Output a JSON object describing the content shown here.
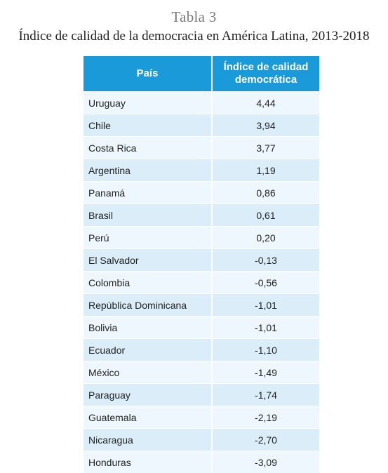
{
  "caption": {
    "label": "Tabla 3",
    "title": "Índice de calidad de la democracia en América Latina, 2013-2018"
  },
  "table": {
    "headers": {
      "pais": "País",
      "indice": "Índice de calidad democrática"
    },
    "rows": [
      {
        "pais": "Uruguay",
        "valor": "4,44"
      },
      {
        "pais": "Chile",
        "valor": "3,94"
      },
      {
        "pais": "Costa Rica",
        "valor": "3,77"
      },
      {
        "pais": "Argentina",
        "valor": "1,19"
      },
      {
        "pais": "Panamá",
        "valor": "0,86"
      },
      {
        "pais": "Brasil",
        "valor": "0,61"
      },
      {
        "pais": "Perú",
        "valor": "0,20"
      },
      {
        "pais": "El Salvador",
        "valor": "-0,13"
      },
      {
        "pais": "Colombia",
        "valor": "-0,56"
      },
      {
        "pais": "República Dominicana",
        "valor": "-1,01"
      },
      {
        "pais": "Bolivia",
        "valor": "-1,01"
      },
      {
        "pais": "Ecuador",
        "valor": "-1,10"
      },
      {
        "pais": "México",
        "valor": "-1,49"
      },
      {
        "pais": "Paraguay",
        "valor": "-1,74"
      },
      {
        "pais": "Guatemala",
        "valor": "-2,19"
      },
      {
        "pais": "Nicaragua",
        "valor": "-2,70"
      },
      {
        "pais": "Honduras",
        "valor": "-3,09"
      }
    ]
  },
  "colors": {
    "header_bg": "#1a9ad9",
    "row_light": "#eef7fd",
    "row_dark": "#dcedfa"
  }
}
